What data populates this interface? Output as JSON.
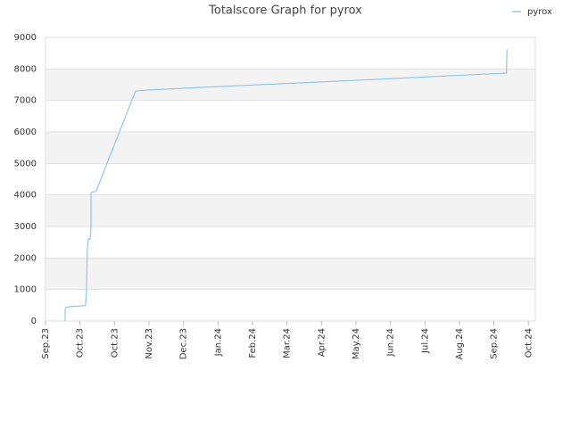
{
  "chart_data": {
    "type": "line",
    "title": "Totalscore Graph for pyrox",
    "x": [
      0.57,
      0.57,
      0.59,
      0.75,
      1.16,
      1.19,
      1.21,
      1.24,
      1.29,
      1.32,
      1.32,
      1.47,
      2.61,
      2.95,
      5.01,
      9.02,
      13.36,
      13.38
    ],
    "series": [
      {
        "name": "pyrox",
        "color": "#92c5ee",
        "values": [
          0,
          370,
          430,
          460,
          490,
          1000,
          2250,
          2600,
          2600,
          2950,
          4070,
          4130,
          7300,
          7330,
          7440,
          7640,
          7870,
          8630
        ]
      }
    ],
    "xlim": [
      0,
      14.2
    ],
    "xticks": [
      {
        "value": 0,
        "label": "Sep.23"
      },
      {
        "value": 1,
        "label": "Oct.23"
      },
      {
        "value": 2,
        "label": "Oct.23"
      },
      {
        "value": 3,
        "label": "Nov.23"
      },
      {
        "value": 4,
        "label": "Dec.23"
      },
      {
        "value": 5,
        "label": "Jan.24"
      },
      {
        "value": 6,
        "label": "Feb.24"
      },
      {
        "value": 7,
        "label": "Mar.24"
      },
      {
        "value": 8,
        "label": "Apr.24"
      },
      {
        "value": 9,
        "label": "May.24"
      },
      {
        "value": 10,
        "label": "Jun.24"
      },
      {
        "value": 11,
        "label": "Jul.24"
      },
      {
        "value": 12,
        "label": "Aug.24"
      },
      {
        "value": 13,
        "label": "Sep.24"
      },
      {
        "value": 14,
        "label": "Oct.24"
      }
    ],
    "ylim": [
      0,
      9000
    ],
    "yticks": [
      0,
      1000,
      2000,
      3000,
      4000,
      5000,
      6000,
      7000,
      8000,
      9000
    ],
    "grid": true,
    "legend": "top-right"
  }
}
